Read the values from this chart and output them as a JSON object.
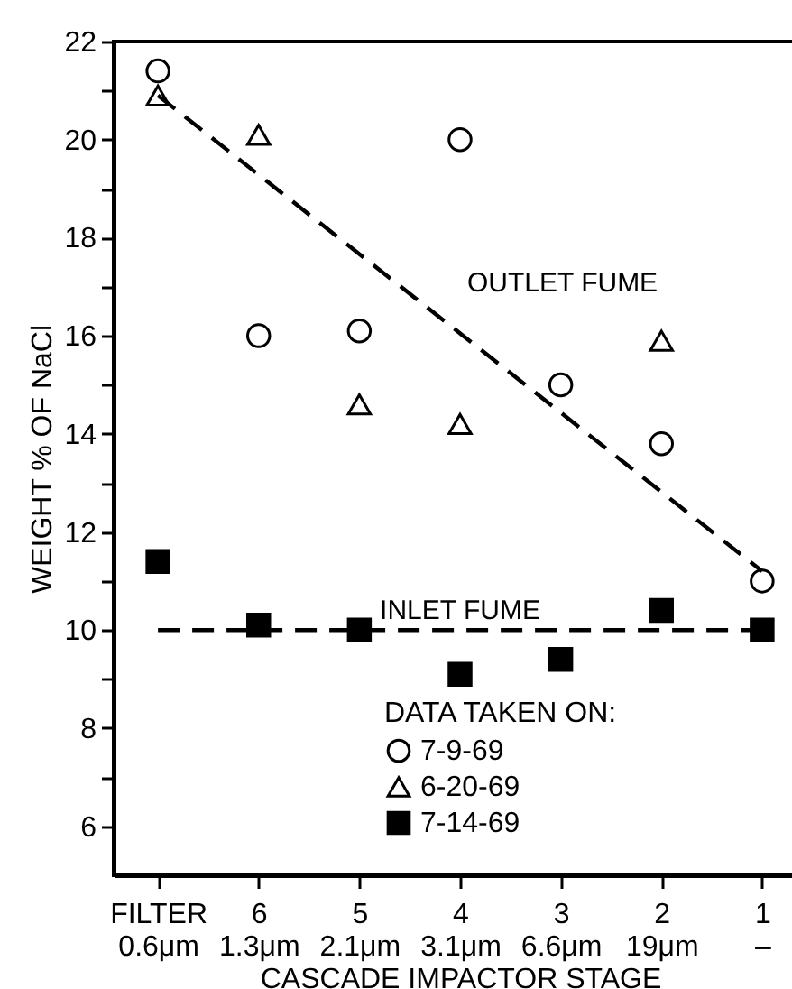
{
  "chart_data": {
    "type": "scatter",
    "xlabel": "CASCADE IMPACTOR STAGE",
    "ylabel": "WEIGHT % OF NaCl",
    "legend_title": "DATA TAKEN ON:",
    "categories": [
      "FILTER\n0.6μm",
      "6\n1.3μm",
      "5\n2.1μm",
      "4\n3.1μm",
      "3\n6.6μm",
      "2\n19μm",
      "1\n–"
    ],
    "series": [
      {
        "name": "7-9-69",
        "type": "scatter",
        "marker": "circle",
        "color": "#000000",
        "values": [
          21.4,
          16.0,
          16.1,
          20.0,
          15.0,
          13.8,
          11.0
        ]
      },
      {
        "name": "6-20-69",
        "type": "scatter",
        "marker": "triangle",
        "color": "#000000",
        "values": [
          20.9,
          20.1,
          14.6,
          14.2,
          null,
          15.9,
          null
        ]
      },
      {
        "name": "7-14-69",
        "type": "scatter",
        "marker": "square",
        "color": "#000000",
        "values": [
          11.4,
          10.1,
          10.0,
          9.1,
          9.4,
          10.4,
          10.0
        ]
      },
      {
        "name": "OUTLET FUME",
        "type": "line",
        "line_style": "dashed",
        "marker": "none",
        "color": "#000000",
        "x": [
          "FILTER\n0.6μm",
          "1\n–"
        ],
        "values": [
          20.9,
          11.2
        ]
      },
      {
        "name": "INLET FUME",
        "type": "line",
        "line_style": "dashed",
        "marker": "none",
        "color": "#000000",
        "x": [
          "FILTER\n0.6μm",
          "1\n–"
        ],
        "values": [
          10.0,
          10.0
        ]
      }
    ],
    "ylim": [
      5,
      22
    ],
    "yticks": [
      6,
      {
        "value": 7,
        "label": null
      },
      8,
      {
        "value": 9,
        "label": null
      },
      10,
      {
        "value": 11,
        "label": null
      },
      12,
      {
        "value": 13,
        "label": null
      },
      14,
      {
        "value": 15,
        "label": null
      },
      16,
      {
        "value": 17,
        "label": null
      },
      18,
      {
        "value": 19,
        "label": null
      },
      20,
      {
        "value": 21,
        "label": null
      },
      22
    ],
    "grid": false,
    "legend": "bottom"
  }
}
